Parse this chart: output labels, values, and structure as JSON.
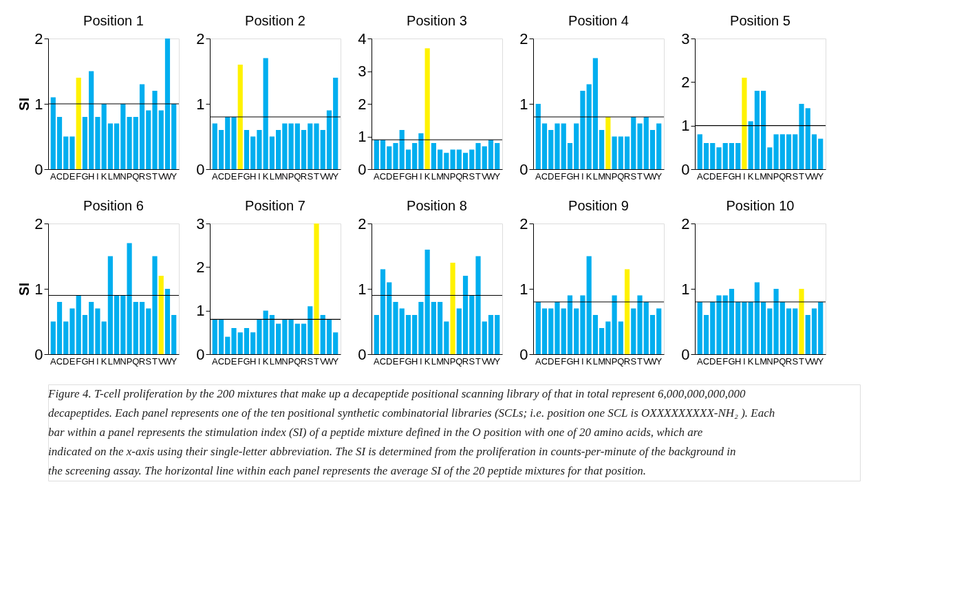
{
  "chart_data": [
    {
      "type": "bar",
      "title": "Position 1",
      "ylabel": "SI",
      "categories": [
        "A",
        "C",
        "D",
        "E",
        "F",
        "G",
        "H",
        "I",
        "K",
        "L",
        "M",
        "N",
        "P",
        "Q",
        "R",
        "S",
        "T",
        "V",
        "W",
        "Y"
      ],
      "values": [
        1.1,
        0.8,
        0.5,
        0.5,
        1.4,
        0.8,
        1.5,
        0.8,
        1.0,
        0.7,
        0.7,
        1.0,
        0.8,
        0.8,
        1.3,
        0.9,
        1.2,
        0.9,
        2.0,
        1.0
      ],
      "colors": [
        "#00aeef",
        "#00aeef",
        "#00aeef",
        "#00aeef",
        "#fff200",
        "#00aeef",
        "#00aeef",
        "#00aeef",
        "#00aeef",
        "#00aeef",
        "#00aeef",
        "#00aeef",
        "#00aeef",
        "#00aeef",
        "#00aeef",
        "#00aeef",
        "#00aeef",
        "#00aeef",
        "#00aeef",
        "#00aeef"
      ],
      "ylim": [
        0,
        2
      ],
      "yticks": [
        0,
        1,
        2
      ],
      "ref_lines": [
        {
          "axis": "y",
          "value": 1.0,
          "color": "#000000"
        }
      ],
      "grid": false
    },
    {
      "type": "bar",
      "title": "Position 2",
      "categories": [
        "A",
        "C",
        "D",
        "E",
        "F",
        "G",
        "H",
        "I",
        "K",
        "L",
        "M",
        "N",
        "P",
        "Q",
        "R",
        "S",
        "T",
        "V",
        "W",
        "Y"
      ],
      "values": [
        0.7,
        0.6,
        0.8,
        0.8,
        1.6,
        0.6,
        0.5,
        0.6,
        1.7,
        0.5,
        0.6,
        0.7,
        0.7,
        0.7,
        0.6,
        0.7,
        0.7,
        0.6,
        0.9,
        1.4
      ],
      "colors": [
        "#00aeef",
        "#00aeef",
        "#00aeef",
        "#00aeef",
        "#fff200",
        "#00aeef",
        "#00aeef",
        "#00aeef",
        "#00aeef",
        "#00aeef",
        "#00aeef",
        "#00aeef",
        "#00aeef",
        "#00aeef",
        "#00aeef",
        "#00aeef",
        "#00aeef",
        "#00aeef",
        "#00aeef",
        "#00aeef"
      ],
      "ylim": [
        0,
        2
      ],
      "yticks": [
        0,
        1,
        2
      ],
      "ref_lines": [
        {
          "axis": "y",
          "value": 0.8,
          "color": "#000000"
        }
      ],
      "grid": false
    },
    {
      "type": "bar",
      "title": "Position 3",
      "categories": [
        "A",
        "C",
        "D",
        "E",
        "F",
        "G",
        "H",
        "I",
        "K",
        "L",
        "M",
        "N",
        "P",
        "Q",
        "R",
        "S",
        "T",
        "V",
        "W",
        "Y"
      ],
      "values": [
        0.9,
        0.9,
        0.7,
        0.8,
        1.2,
        0.6,
        0.8,
        1.1,
        3.7,
        0.8,
        0.6,
        0.5,
        0.6,
        0.6,
        0.5,
        0.6,
        0.8,
        0.7,
        0.9,
        0.8
      ],
      "colors": [
        "#00aeef",
        "#00aeef",
        "#00aeef",
        "#00aeef",
        "#00aeef",
        "#00aeef",
        "#00aeef",
        "#00aeef",
        "#fff200",
        "#00aeef",
        "#00aeef",
        "#00aeef",
        "#00aeef",
        "#00aeef",
        "#00aeef",
        "#00aeef",
        "#00aeef",
        "#00aeef",
        "#00aeef",
        "#00aeef"
      ],
      "ylim": [
        0,
        4
      ],
      "yticks": [
        0,
        1,
        2,
        3,
        4
      ],
      "ref_lines": [
        {
          "axis": "y",
          "value": 0.9,
          "color": "#000000"
        }
      ],
      "grid": false
    },
    {
      "type": "bar",
      "title": "Position 4",
      "categories": [
        "A",
        "C",
        "D",
        "E",
        "F",
        "G",
        "H",
        "I",
        "K",
        "L",
        "M",
        "N",
        "P",
        "Q",
        "R",
        "S",
        "T",
        "V",
        "W",
        "Y"
      ],
      "values": [
        1.0,
        0.7,
        0.6,
        0.7,
        0.7,
        0.4,
        0.7,
        1.2,
        1.3,
        1.7,
        0.6,
        0.8,
        0.5,
        0.5,
        0.5,
        0.8,
        0.7,
        0.8,
        0.6,
        0.7
      ],
      "colors": [
        "#00aeef",
        "#00aeef",
        "#00aeef",
        "#00aeef",
        "#00aeef",
        "#00aeef",
        "#00aeef",
        "#00aeef",
        "#00aeef",
        "#00aeef",
        "#00aeef",
        "#fff200",
        "#00aeef",
        "#00aeef",
        "#00aeef",
        "#00aeef",
        "#00aeef",
        "#00aeef",
        "#00aeef",
        "#00aeef"
      ],
      "ylim": [
        0,
        2
      ],
      "yticks": [
        0,
        1,
        2
      ],
      "ref_lines": [
        {
          "axis": "y",
          "value": 0.8,
          "color": "#000000"
        }
      ],
      "grid": false
    },
    {
      "type": "bar",
      "title": "Position 5",
      "categories": [
        "A",
        "C",
        "D",
        "E",
        "F",
        "G",
        "H",
        "I",
        "K",
        "L",
        "M",
        "N",
        "P",
        "Q",
        "R",
        "S",
        "T",
        "V",
        "W",
        "Y"
      ],
      "values": [
        0.8,
        0.6,
        0.6,
        0.5,
        0.6,
        0.6,
        0.6,
        2.1,
        1.1,
        1.8,
        1.8,
        0.5,
        0.8,
        0.8,
        0.8,
        0.8,
        1.5,
        1.4,
        0.8,
        0.7
      ],
      "colors": [
        "#00aeef",
        "#00aeef",
        "#00aeef",
        "#00aeef",
        "#00aeef",
        "#00aeef",
        "#00aeef",
        "#fff200",
        "#00aeef",
        "#00aeef",
        "#00aeef",
        "#00aeef",
        "#00aeef",
        "#00aeef",
        "#00aeef",
        "#00aeef",
        "#00aeef",
        "#00aeef",
        "#00aeef",
        "#00aeef"
      ],
      "ylim": [
        0,
        3
      ],
      "yticks": [
        0,
        1,
        2,
        3
      ],
      "ref_lines": [
        {
          "axis": "y",
          "value": 1.0,
          "color": "#000000"
        }
      ],
      "grid": false
    },
    {
      "type": "bar",
      "title": "Position 6",
      "ylabel": "SI",
      "categories": [
        "A",
        "C",
        "D",
        "E",
        "F",
        "G",
        "H",
        "I",
        "K",
        "L",
        "M",
        "N",
        "P",
        "Q",
        "R",
        "S",
        "T",
        "V",
        "W",
        "Y"
      ],
      "values": [
        0.5,
        0.8,
        0.5,
        0.7,
        0.9,
        0.6,
        0.8,
        0.7,
        0.5,
        1.5,
        0.9,
        0.9,
        1.7,
        0.8,
        0.8,
        0.7,
        1.5,
        1.2,
        1.0,
        0.6
      ],
      "colors": [
        "#00aeef",
        "#00aeef",
        "#00aeef",
        "#00aeef",
        "#00aeef",
        "#00aeef",
        "#00aeef",
        "#00aeef",
        "#00aeef",
        "#00aeef",
        "#00aeef",
        "#00aeef",
        "#00aeef",
        "#00aeef",
        "#00aeef",
        "#00aeef",
        "#00aeef",
        "#fff200",
        "#00aeef",
        "#00aeef"
      ],
      "ylim": [
        0,
        2
      ],
      "yticks": [
        0,
        1,
        2
      ],
      "ref_lines": [
        {
          "axis": "y",
          "value": 0.9,
          "color": "#000000"
        }
      ],
      "grid": false
    },
    {
      "type": "bar",
      "title": "Position 7",
      "categories": [
        "A",
        "C",
        "D",
        "E",
        "F",
        "G",
        "H",
        "I",
        "K",
        "L",
        "M",
        "N",
        "P",
        "Q",
        "R",
        "S",
        "T",
        "V",
        "W",
        "Y"
      ],
      "values": [
        0.8,
        0.8,
        0.4,
        0.6,
        0.5,
        0.6,
        0.5,
        0.8,
        1.0,
        0.9,
        0.7,
        0.8,
        0.8,
        0.7,
        0.7,
        1.1,
        3.0,
        0.9,
        0.8,
        0.5
      ],
      "colors": [
        "#00aeef",
        "#00aeef",
        "#00aeef",
        "#00aeef",
        "#00aeef",
        "#00aeef",
        "#00aeef",
        "#00aeef",
        "#00aeef",
        "#00aeef",
        "#00aeef",
        "#00aeef",
        "#00aeef",
        "#00aeef",
        "#00aeef",
        "#00aeef",
        "#fff200",
        "#00aeef",
        "#00aeef",
        "#00aeef"
      ],
      "ylim": [
        0,
        3
      ],
      "yticks": [
        0,
        1,
        2,
        3
      ],
      "ref_lines": [
        {
          "axis": "y",
          "value": 0.8,
          "color": "#000000"
        }
      ],
      "grid": false
    },
    {
      "type": "bar",
      "title": "Position 8",
      "categories": [
        "A",
        "C",
        "D",
        "E",
        "F",
        "G",
        "H",
        "I",
        "K",
        "L",
        "M",
        "N",
        "P",
        "Q",
        "R",
        "S",
        "T",
        "V",
        "W",
        "Y"
      ],
      "values": [
        0.6,
        1.3,
        1.1,
        0.8,
        0.7,
        0.6,
        0.6,
        0.8,
        1.6,
        0.8,
        0.8,
        0.5,
        1.4,
        0.7,
        1.2,
        0.9,
        1.5,
        0.5,
        0.6,
        0.6
      ],
      "colors": [
        "#00aeef",
        "#00aeef",
        "#00aeef",
        "#00aeef",
        "#00aeef",
        "#00aeef",
        "#00aeef",
        "#00aeef",
        "#00aeef",
        "#00aeef",
        "#00aeef",
        "#00aeef",
        "#fff200",
        "#00aeef",
        "#00aeef",
        "#00aeef",
        "#00aeef",
        "#00aeef",
        "#00aeef",
        "#00aeef"
      ],
      "ylim": [
        0,
        2
      ],
      "yticks": [
        0,
        1,
        2
      ],
      "ref_lines": [
        {
          "axis": "y",
          "value": 0.9,
          "color": "#000000"
        }
      ],
      "grid": false
    },
    {
      "type": "bar",
      "title": "Position 9",
      "categories": [
        "A",
        "C",
        "D",
        "E",
        "F",
        "G",
        "H",
        "I",
        "K",
        "L",
        "M",
        "N",
        "P",
        "Q",
        "R",
        "S",
        "T",
        "V",
        "W",
        "Y"
      ],
      "values": [
        0.8,
        0.7,
        0.7,
        0.8,
        0.7,
        0.9,
        0.7,
        0.9,
        1.5,
        0.6,
        0.4,
        0.5,
        0.9,
        0.5,
        1.3,
        0.7,
        0.9,
        0.8,
        0.6,
        0.7
      ],
      "colors": [
        "#00aeef",
        "#00aeef",
        "#00aeef",
        "#00aeef",
        "#00aeef",
        "#00aeef",
        "#00aeef",
        "#00aeef",
        "#00aeef",
        "#00aeef",
        "#00aeef",
        "#00aeef",
        "#00aeef",
        "#00aeef",
        "#fff200",
        "#00aeef",
        "#00aeef",
        "#00aeef",
        "#00aeef",
        "#00aeef"
      ],
      "ylim": [
        0,
        2
      ],
      "yticks": [
        0,
        1,
        2
      ],
      "ref_lines": [
        {
          "axis": "y",
          "value": 0.8,
          "color": "#000000"
        }
      ],
      "grid": false
    },
    {
      "type": "bar",
      "title": "Position 10",
      "categories": [
        "A",
        "C",
        "D",
        "E",
        "F",
        "G",
        "H",
        "I",
        "K",
        "L",
        "M",
        "N",
        "P",
        "Q",
        "R",
        "S",
        "T",
        "V",
        "W",
        "Y"
      ],
      "values": [
        0.8,
        0.6,
        0.8,
        0.9,
        0.9,
        1.0,
        0.8,
        0.8,
        0.8,
        1.1,
        0.8,
        0.7,
        1.0,
        0.8,
        0.7,
        0.7,
        1.0,
        0.6,
        0.7,
        0.8
      ],
      "colors": [
        "#00aeef",
        "#00aeef",
        "#00aeef",
        "#00aeef",
        "#00aeef",
        "#00aeef",
        "#00aeef",
        "#00aeef",
        "#00aeef",
        "#00aeef",
        "#00aeef",
        "#00aeef",
        "#00aeef",
        "#00aeef",
        "#00aeef",
        "#00aeef",
        "#fff200",
        "#00aeef",
        "#00aeef",
        "#00aeef"
      ],
      "ylim": [
        0,
        2
      ],
      "yticks": [
        0,
        1,
        2
      ],
      "ref_lines": [
        {
          "axis": "y",
          "value": 0.8,
          "color": "#000000"
        }
      ],
      "grid": false,
      "annotations": [
        "Figure 4. T-cell proliferation by the 200 mixtures that make up a decapeptide positional scanning library of that in total represent 6,000,000,000,000 decapeptides. Each panel represents one of the ten positional synthetic combinatorial libraries (SCLs; i.e. position one SCL is OXXXXXXXXX-NH₂ ). Each bar within a panel represents the stimulation index (SI) of a peptide mixture defined in the O position with one of 20 amino acids, which are indicated on the x-axis using their single-letter abbreviation. The SI is determined from the proliferation in counts-per-minute of the background in the screening assay. The horizontal line within each panel represents the average SI of the 20 peptide mixtures for that position."
      ]
    }
  ]
}
